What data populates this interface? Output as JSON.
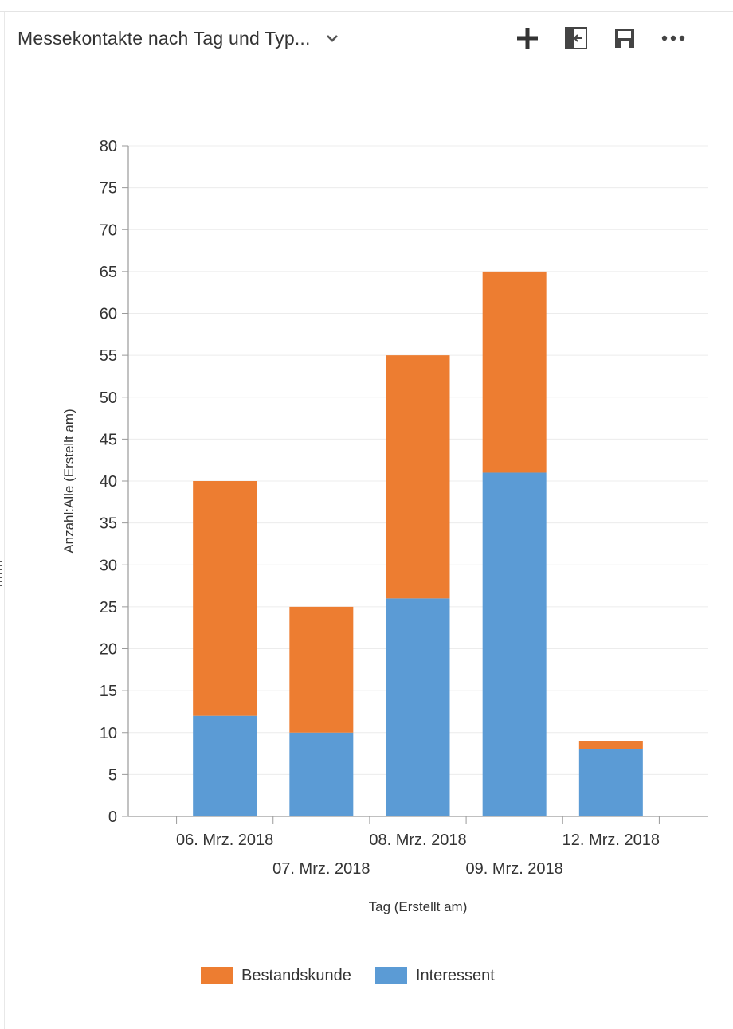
{
  "header": {
    "title": "Messekontakte nach Tag und Typ...",
    "title_icon": "chevron-down-icon",
    "toolbar": [
      {
        "name": "add-button",
        "icon": "plus-icon"
      },
      {
        "name": "expand-chart-button",
        "icon": "expand-icon"
      },
      {
        "name": "save-button",
        "icon": "save-icon"
      },
      {
        "name": "more-options-button",
        "icon": "ellipsis-icon"
      }
    ]
  },
  "colors": {
    "bestandskunde": "#ED7D31",
    "interessent": "#5B9BD5",
    "axis": "#9a9a9a",
    "grid": "#ececec",
    "text": "#333333"
  },
  "chart_data": {
    "type": "bar",
    "stacked": true,
    "title": "",
    "xlabel": "Tag (Erstellt am)",
    "ylabel": "Anzahl:Alle (Erstellt am)",
    "ylim": [
      0,
      80
    ],
    "yticks": [
      0,
      5,
      10,
      15,
      20,
      25,
      30,
      35,
      40,
      45,
      50,
      55,
      60,
      65,
      70,
      75,
      80
    ],
    "grid": true,
    "legend_position": "bottom",
    "categories": [
      "06. Mrz. 2018",
      "07. Mrz. 2018",
      "08. Mrz. 2018",
      "09. Mrz. 2018",
      "12. Mrz. 2018"
    ],
    "series": [
      {
        "name": "Interessent",
        "values": [
          12,
          10,
          26,
          41,
          8
        ]
      },
      {
        "name": "Bestandskunde",
        "values": [
          28,
          15,
          29,
          24,
          1
        ]
      }
    ]
  },
  "legend": [
    {
      "label": "Bestandskunde",
      "series": "Bestandskunde"
    },
    {
      "label": "Interessent",
      "series": "Interessent"
    }
  ]
}
